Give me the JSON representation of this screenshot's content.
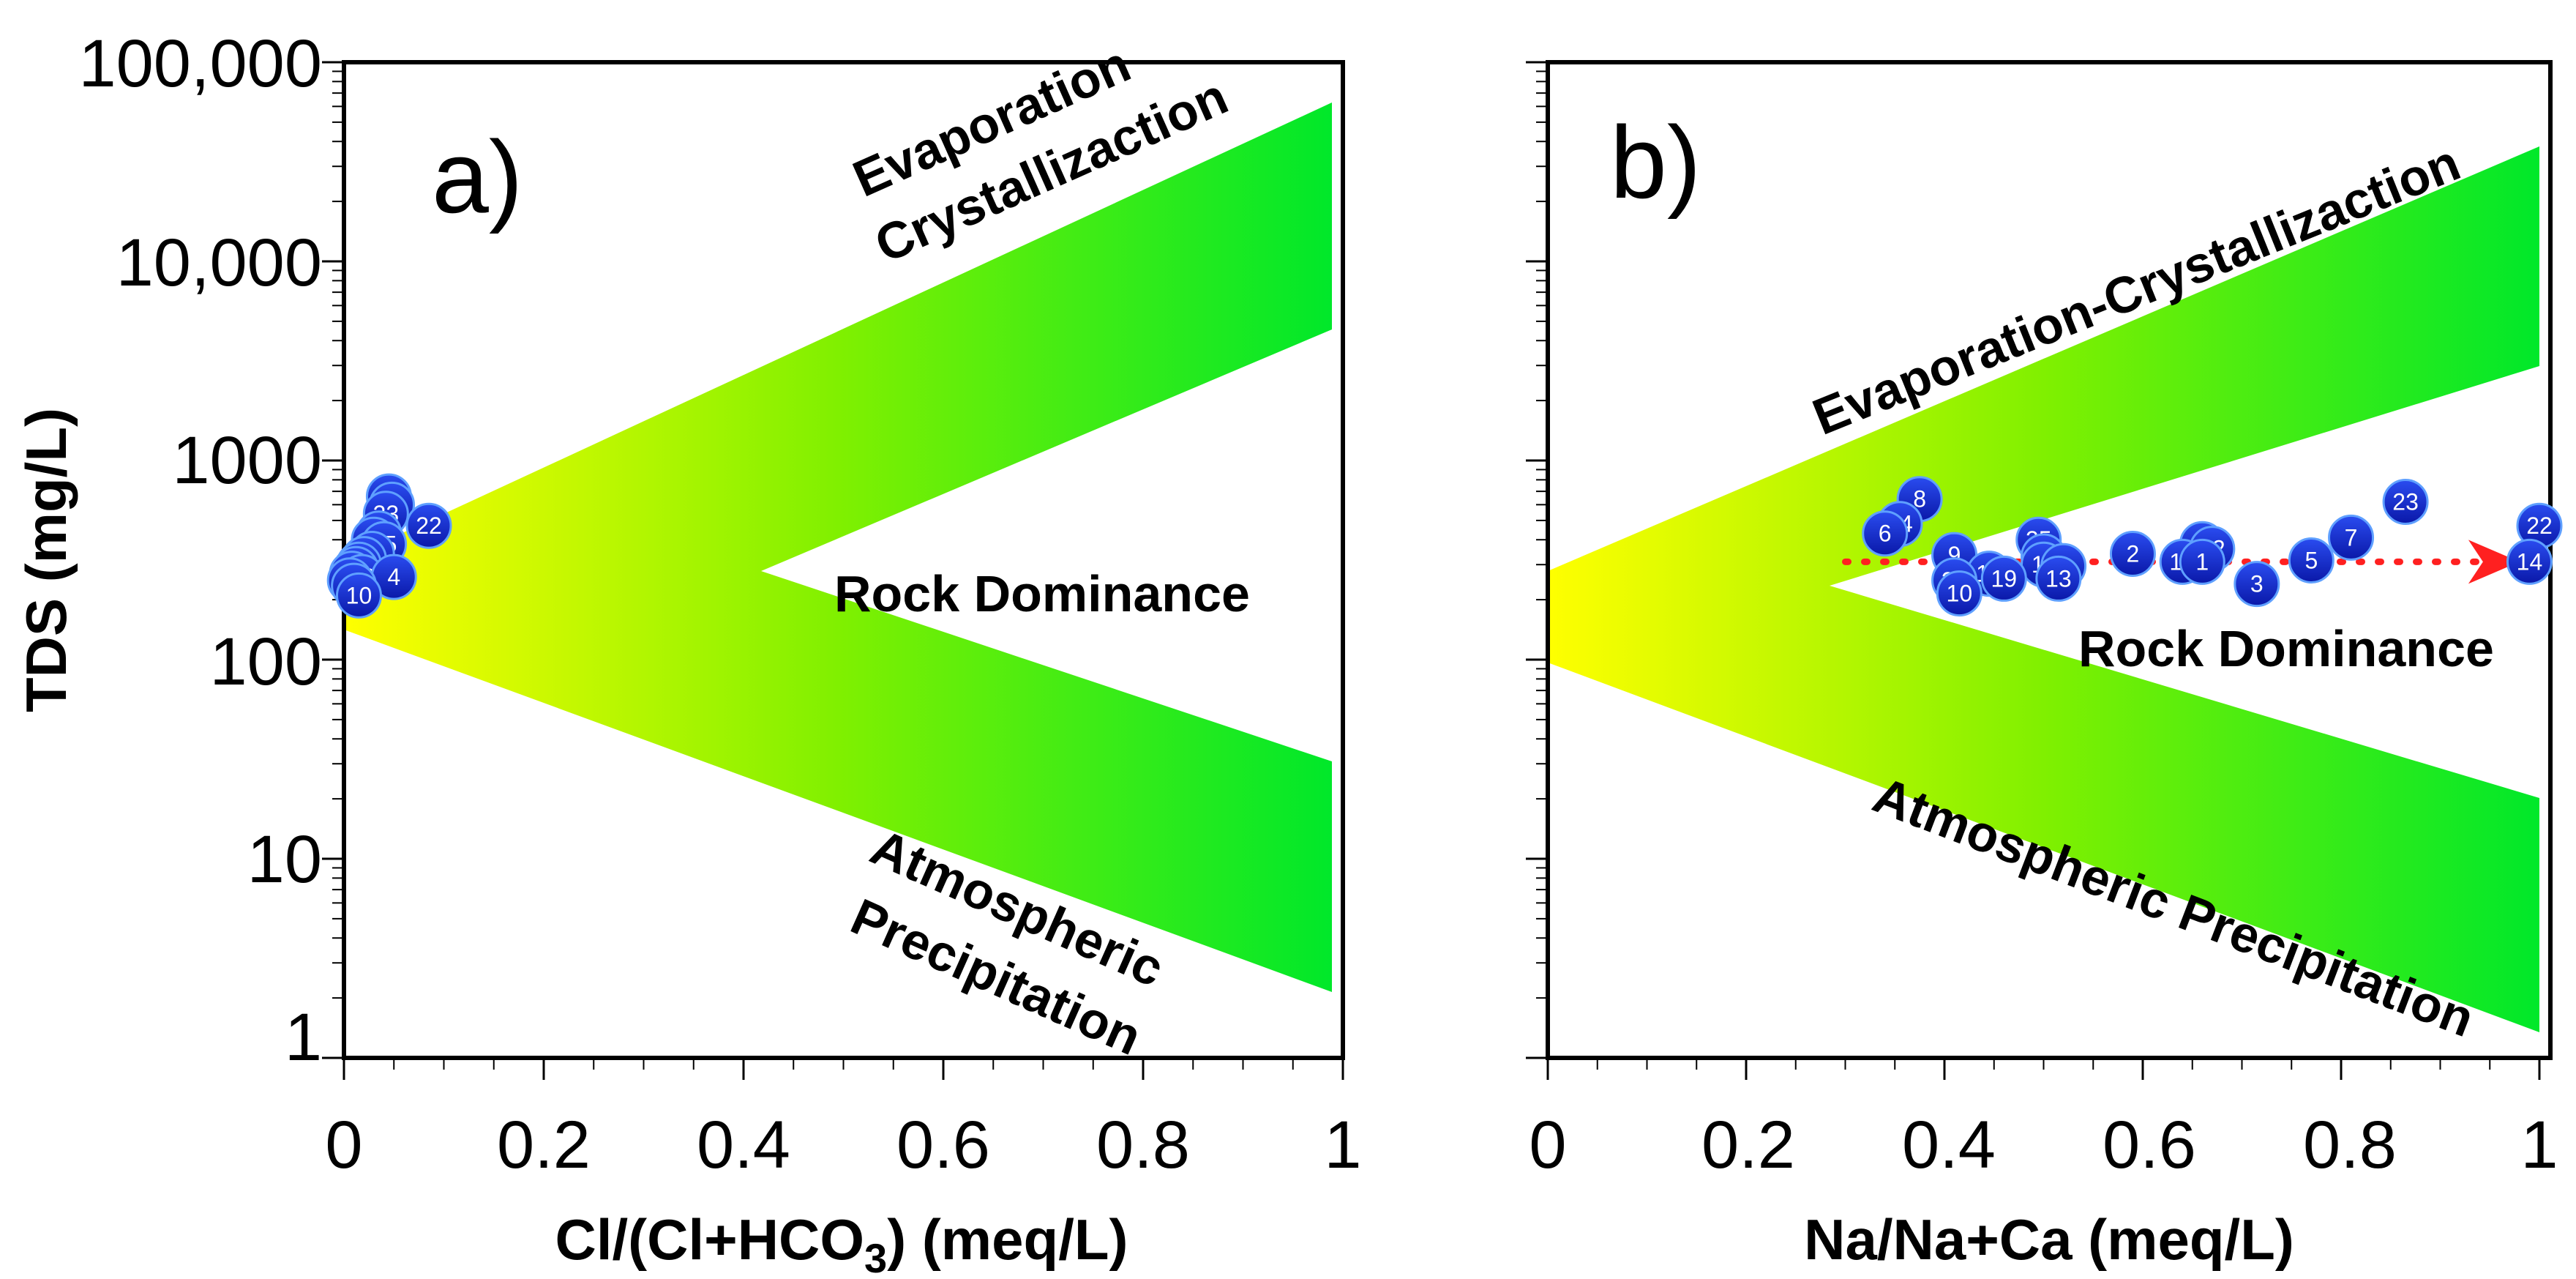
{
  "chart_data": [
    {
      "type": "scatter",
      "panel_label": "a)",
      "xlabel": "Cl/(Cl+HCO",
      "xlabel_sub": "3",
      "xlabel_tail": ") (meq/L)",
      "ylabel": "TDS (mg/L)",
      "xlim": [
        0,
        1
      ],
      "ylim": [
        1,
        100000
      ],
      "yscale": "log",
      "x_ticks": [
        "0",
        "0.2",
        "0.4",
        "0.6",
        "0.8",
        "1"
      ],
      "y_ticks": [
        "1",
        "10",
        "100",
        "1000",
        "10,000",
        "100,000"
      ],
      "regions": {
        "evaporation": [
          "Evaporation",
          "Crystallizaction"
        ],
        "rock": "Rock Dominance",
        "atmospheric": [
          "Atmospheric",
          "Precipitation"
        ]
      },
      "points": [
        {
          "label": "29",
          "x": 0.045,
          "y": 660
        },
        {
          "label": "8",
          "x": 0.048,
          "y": 600
        },
        {
          "label": "23",
          "x": 0.042,
          "y": 540
        },
        {
          "label": "22",
          "x": 0.085,
          "y": 470
        },
        {
          "label": "24",
          "x": 0.035,
          "y": 430
        },
        {
          "label": "6",
          "x": 0.03,
          "y": 400
        },
        {
          "label": "25",
          "x": 0.04,
          "y": 380
        },
        {
          "label": "9",
          "x": 0.028,
          "y": 340
        },
        {
          "label": "20",
          "x": 0.02,
          "y": 320
        },
        {
          "label": "2",
          "x": 0.015,
          "y": 300
        },
        {
          "label": "17",
          "x": 0.012,
          "y": 285
        },
        {
          "label": "1",
          "x": 0.008,
          "y": 270
        },
        {
          "label": "13",
          "x": 0.018,
          "y": 260
        },
        {
          "label": "19",
          "x": 0.006,
          "y": 250
        },
        {
          "label": "4",
          "x": 0.05,
          "y": 260
        },
        {
          "label": "21",
          "x": 0.01,
          "y": 235
        },
        {
          "label": "10",
          "x": 0.015,
          "y": 210
        }
      ]
    },
    {
      "type": "scatter",
      "panel_label": "b)",
      "xlabel": "Na/Na+Ca (meq/L)",
      "ylabel": "",
      "xlim": [
        0,
        1
      ],
      "ylim": [
        1,
        100000
      ],
      "yscale": "log",
      "x_ticks": [
        "0",
        "0.2",
        "0.4",
        "0.6",
        "0.8",
        "1"
      ],
      "regions": {
        "evaporation": "Evaporation-Crystallizaction",
        "rock": "Rock Dominance",
        "atmospheric": "Atmospheric Precipitation"
      },
      "trend_arrow": {
        "x_start": 0.3,
        "x_end": 0.98,
        "y": 310,
        "color": "#ff2020"
      },
      "points": [
        {
          "label": "8",
          "x": 0.375,
          "y": 640
        },
        {
          "label": "23",
          "x": 0.865,
          "y": 620
        },
        {
          "label": "24",
          "x": 0.355,
          "y": 480
        },
        {
          "label": "22",
          "x": 1.0,
          "y": 470
        },
        {
          "label": "6",
          "x": 0.34,
          "y": 430
        },
        {
          "label": "7",
          "x": 0.81,
          "y": 410
        },
        {
          "label": "25",
          "x": 0.495,
          "y": 400
        },
        {
          "label": "15",
          "x": 0.66,
          "y": 380
        },
        {
          "label": "12",
          "x": 0.67,
          "y": 360
        },
        {
          "label": "2",
          "x": 0.59,
          "y": 340
        },
        {
          "label": "9",
          "x": 0.41,
          "y": 335
        },
        {
          "label": "20",
          "x": 0.5,
          "y": 330
        },
        {
          "label": "5",
          "x": 0.77,
          "y": 315
        },
        {
          "label": "17",
          "x": 0.64,
          "y": 310
        },
        {
          "label": "1",
          "x": 0.66,
          "y": 310
        },
        {
          "label": "14",
          "x": 0.99,
          "y": 310
        },
        {
          "label": "11",
          "x": 0.5,
          "y": 300
        },
        {
          "label": "4",
          "x": 0.52,
          "y": 295
        },
        {
          "label": "18",
          "x": 0.445,
          "y": 270
        },
        {
          "label": "19",
          "x": 0.46,
          "y": 255
        },
        {
          "label": "13",
          "x": 0.515,
          "y": 255
        },
        {
          "label": "21",
          "x": 0.41,
          "y": 250
        },
        {
          "label": "3",
          "x": 0.715,
          "y": 240
        },
        {
          "label": "10",
          "x": 0.415,
          "y": 215
        }
      ]
    }
  ]
}
